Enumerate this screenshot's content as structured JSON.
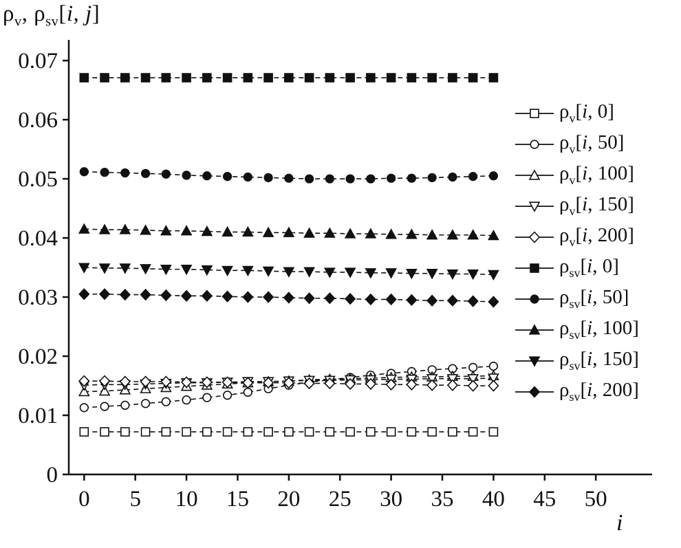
{
  "page": {
    "background": "#ffffff",
    "ink": "#111111"
  },
  "chart_data": {
    "type": "line",
    "title": "ρv, ρsv[i, j]",
    "title_parts": {
      "rho1": "ρ",
      "sub1": "v",
      "sep": ", ",
      "rho2": "ρ",
      "sub2": "sv",
      "open": "[",
      "vars": "i, j",
      "close": "]"
    },
    "xlabel": "i",
    "ylabel": "ρv, ρsv[i, j]",
    "xlim": [
      -1.5,
      55.5
    ],
    "ylim": [
      0,
      0.0735
    ],
    "grid": false,
    "legend_position": "right",
    "xticks": [
      0,
      5,
      10,
      15,
      20,
      25,
      30,
      35,
      40,
      45,
      50
    ],
    "xtick_labels": [
      "0",
      "5",
      "10",
      "15",
      "20",
      "25",
      "30",
      "35",
      "40",
      "45",
      "50"
    ],
    "yticks": [
      0,
      0.01,
      0.02,
      0.03,
      0.04,
      0.05,
      0.06,
      0.07
    ],
    "ytick_labels": [
      "0",
      "0.01",
      "0.02",
      "0.03",
      "0.04",
      "0.05",
      "0.06",
      "0.07"
    ],
    "x": [
      0,
      2,
      4,
      6,
      8,
      10,
      12,
      14,
      16,
      18,
      20,
      22,
      24,
      26,
      28,
      30,
      32,
      34,
      36,
      38,
      40
    ],
    "series": [
      {
        "label": "ρv[i, 0]",
        "sub": "v",
        "var": "i",
        "j": "0",
        "marker": "square",
        "filled": false,
        "values": [
          0.0072,
          0.0072,
          0.0072,
          0.0072,
          0.0072,
          0.0072,
          0.0072,
          0.0072,
          0.0072,
          0.0072,
          0.0072,
          0.0072,
          0.0072,
          0.0072,
          0.0072,
          0.0072,
          0.0072,
          0.0072,
          0.0072,
          0.0072,
          0.0072
        ]
      },
      {
        "label": "ρv[i, 50]",
        "sub": "v",
        "var": "i",
        "j": "50",
        "marker": "circle",
        "filled": false,
        "values": [
          0.0113,
          0.0115,
          0.0117,
          0.012,
          0.0123,
          0.0126,
          0.013,
          0.0134,
          0.0139,
          0.0145,
          0.0151,
          0.0156,
          0.016,
          0.0164,
          0.0168,
          0.0171,
          0.0174,
          0.0177,
          0.0179,
          0.0181,
          0.0183
        ]
      },
      {
        "label": "ρv[i, 100]",
        "sub": "v",
        "var": "i",
        "j": "100",
        "marker": "triangle-up",
        "filled": false,
        "values": [
          0.014,
          0.0141,
          0.0143,
          0.0145,
          0.0147,
          0.0149,
          0.0151,
          0.0153,
          0.0155,
          0.0157,
          0.0158,
          0.016,
          0.0161,
          0.0162,
          0.0163,
          0.0164,
          0.0165,
          0.0165,
          0.0166,
          0.0166,
          0.0167
        ]
      },
      {
        "label": "ρv[i, 150]",
        "sub": "v",
        "var": "i",
        "j": "150",
        "marker": "triangle-down",
        "filled": false,
        "values": [
          0.0151,
          0.0152,
          0.0152,
          0.0153,
          0.0154,
          0.0155,
          0.0155,
          0.0156,
          0.0157,
          0.0157,
          0.0158,
          0.0159,
          0.0159,
          0.016,
          0.016,
          0.0161,
          0.0161,
          0.0162,
          0.0162,
          0.0162,
          0.0163
        ]
      },
      {
        "label": "ρv[i, 200]",
        "sub": "v",
        "var": "i",
        "j": "200",
        "marker": "diamond",
        "filled": false,
        "values": [
          0.0158,
          0.0158,
          0.0157,
          0.0157,
          0.0157,
          0.0156,
          0.0156,
          0.0156,
          0.0155,
          0.0155,
          0.0155,
          0.0154,
          0.0154,
          0.0153,
          0.0153,
          0.0152,
          0.0152,
          0.0151,
          0.0151,
          0.015,
          0.015
        ]
      },
      {
        "label": "ρsv[i, 0]",
        "sub": "sv",
        "var": "i",
        "j": "0",
        "marker": "square",
        "filled": true,
        "values": [
          0.0671,
          0.0671,
          0.0671,
          0.0671,
          0.0671,
          0.0671,
          0.0671,
          0.0671,
          0.0671,
          0.0671,
          0.0671,
          0.0671,
          0.0671,
          0.0671,
          0.0671,
          0.0671,
          0.0671,
          0.0671,
          0.0671,
          0.0671,
          0.0671
        ]
      },
      {
        "label": "ρsv[i, 50]",
        "sub": "sv",
        "var": "i",
        "j": "50",
        "marker": "circle",
        "filled": true,
        "values": [
          0.0512,
          0.0511,
          0.051,
          0.0509,
          0.0508,
          0.0506,
          0.0505,
          0.0504,
          0.0503,
          0.0502,
          0.0501,
          0.05,
          0.05,
          0.05,
          0.05,
          0.0501,
          0.0501,
          0.0502,
          0.0503,
          0.0504,
          0.0505
        ]
      },
      {
        "label": "ρsv[i, 100]",
        "sub": "sv",
        "var": "i",
        "j": "100",
        "marker": "triangle-up",
        "filled": true,
        "values": [
          0.0415,
          0.0414,
          0.0414,
          0.0413,
          0.0412,
          0.0412,
          0.0411,
          0.041,
          0.041,
          0.0409,
          0.0409,
          0.0408,
          0.0408,
          0.0407,
          0.0407,
          0.0406,
          0.0406,
          0.0405,
          0.0405,
          0.0405,
          0.0404
        ]
      },
      {
        "label": "ρsv[i, 150]",
        "sub": "sv",
        "var": "i",
        "j": "150",
        "marker": "triangle-down",
        "filled": true,
        "values": [
          0.035,
          0.0349,
          0.0349,
          0.0348,
          0.0347,
          0.0347,
          0.0346,
          0.0345,
          0.0345,
          0.0344,
          0.0343,
          0.0343,
          0.0342,
          0.0342,
          0.0341,
          0.0341,
          0.034,
          0.034,
          0.0339,
          0.0339,
          0.0338
        ]
      },
      {
        "label": "ρsv[i, 200]",
        "sub": "sv",
        "var": "i",
        "j": "200",
        "marker": "diamond",
        "filled": true,
        "values": [
          0.0305,
          0.0305,
          0.0304,
          0.0304,
          0.0303,
          0.0302,
          0.0302,
          0.0301,
          0.03,
          0.03,
          0.0299,
          0.0298,
          0.0298,
          0.0297,
          0.0296,
          0.0296,
          0.0295,
          0.0294,
          0.0294,
          0.0293,
          0.0292
        ]
      }
    ]
  }
}
